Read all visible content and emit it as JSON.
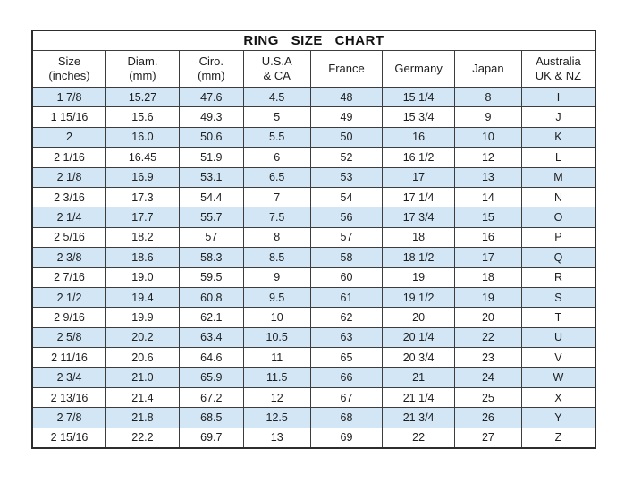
{
  "title": "RING  SIZE  CHART",
  "chart_data": {
    "type": "table",
    "title": "RING SIZE CHART",
    "column_keys": [
      "size-inches",
      "diam-mm",
      "ciro-mm",
      "usa-ca",
      "france",
      "germany",
      "japan",
      "australia-uk-nz"
    ],
    "columns": [
      [
        "Size",
        "(inches)"
      ],
      [
        "Diam.",
        "(mm)"
      ],
      [
        "Ciro.",
        "(mm)"
      ],
      [
        "U.S.A",
        "& CA"
      ],
      [
        "France"
      ],
      [
        "Germany"
      ],
      [
        "Japan"
      ],
      [
        "Australia",
        "UK & NZ"
      ]
    ],
    "rows": [
      [
        "1 7/8",
        "15.27",
        "47.6",
        "4.5",
        "48",
        "15 1/4",
        "8",
        "I"
      ],
      [
        "1 15/16",
        "15.6",
        "49.3",
        "5",
        "49",
        "15 3/4",
        "9",
        "J"
      ],
      [
        "2",
        "16.0",
        "50.6",
        "5.5",
        "50",
        "16",
        "10",
        "K"
      ],
      [
        "2 1/16",
        "16.45",
        "51.9",
        "6",
        "52",
        "16 1/2",
        "12",
        "L"
      ],
      [
        "2 1/8",
        "16.9",
        "53.1",
        "6.5",
        "53",
        "17",
        "13",
        "M"
      ],
      [
        "2 3/16",
        "17.3",
        "54.4",
        "7",
        "54",
        "17 1/4",
        "14",
        "N"
      ],
      [
        "2 1/4",
        "17.7",
        "55.7",
        "7.5",
        "56",
        "17 3/4",
        "15",
        "O"
      ],
      [
        "2 5/16",
        "18.2",
        "57",
        "8",
        "57",
        "18",
        "16",
        "P"
      ],
      [
        "2 3/8",
        "18.6",
        "58.3",
        "8.5",
        "58",
        "18 1/2",
        "17",
        "Q"
      ],
      [
        "2 7/16",
        "19.0",
        "59.5",
        "9",
        "60",
        "19",
        "18",
        "R"
      ],
      [
        "2 1/2",
        "19.4",
        "60.8",
        "9.5",
        "61",
        "19 1/2",
        "19",
        "S"
      ],
      [
        "2 9/16",
        "19.9",
        "62.1",
        "10",
        "62",
        "20",
        "20",
        "T"
      ],
      [
        "2 5/8",
        "20.2",
        "63.4",
        "10.5",
        "63",
        "20 1/4",
        "22",
        "U"
      ],
      [
        "2 11/16",
        "20.6",
        "64.6",
        "11",
        "65",
        "20 3/4",
        "23",
        "V"
      ],
      [
        "2 3/4",
        "21.0",
        "65.9",
        "11.5",
        "66",
        "21",
        "24",
        "W"
      ],
      [
        "2 13/16",
        "21.4",
        "67.2",
        "12",
        "67",
        "21 1/4",
        "25",
        "X"
      ],
      [
        "2 7/8",
        "21.8",
        "68.5",
        "12.5",
        "68",
        "21 3/4",
        "26",
        "Y"
      ],
      [
        "2 15/16",
        "22.2",
        "69.7",
        "13",
        "69",
        "22",
        "27",
        "Z"
      ]
    ],
    "layout_hints": {
      "striped_rows": "odd",
      "stripe_color": "#d2e6f5",
      "row_color": "#ffffff",
      "border_color": "#3c3c3c",
      "page_background": "#ffffff",
      "text_color": "#1d1d1d"
    }
  }
}
